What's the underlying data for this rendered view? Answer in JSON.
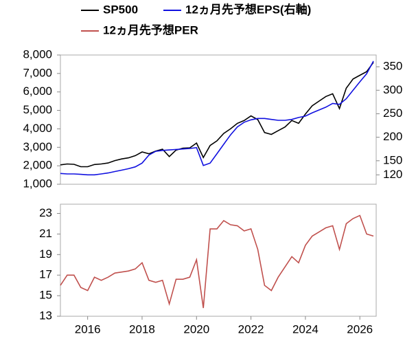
{
  "chart_data": [
    {
      "type": "line",
      "x": [
        2015,
        2015.25,
        2015.5,
        2015.75,
        2016,
        2016.25,
        2016.5,
        2016.75,
        2017,
        2017.25,
        2017.5,
        2017.75,
        2018,
        2018.25,
        2018.5,
        2018.75,
        2019,
        2019.25,
        2019.5,
        2019.75,
        2020,
        2020.25,
        2020.5,
        2020.75,
        2021,
        2021.25,
        2021.5,
        2021.75,
        2022,
        2022.25,
        2022.5,
        2022.75,
        2023,
        2023.25,
        2023.5,
        2023.75,
        2024,
        2024.25,
        2024.5,
        2024.75,
        2025,
        2025.25,
        2025.5,
        2025.75,
        2026,
        2026.25,
        2026.5
      ],
      "series": [
        {
          "name": "SP500",
          "color": "#000000",
          "values": [
            2050,
            2100,
            2080,
            1950,
            1950,
            2070,
            2100,
            2150,
            2280,
            2370,
            2430,
            2550,
            2750,
            2650,
            2800,
            2900,
            2500,
            2850,
            2950,
            2970,
            3230,
            2450,
            3100,
            3350,
            3750,
            4000,
            4300,
            4450,
            4700,
            4500,
            3800,
            3700,
            3900,
            4100,
            4450,
            4300,
            4800,
            5250,
            5500,
            5750,
            5900,
            5100,
            6200,
            6700,
            6900,
            7100,
            7600
          ]
        },
        {
          "name": "12ヵ月先予想EPS(右軸)",
          "color": "#1010e0",
          "axis": "y2",
          "values": [
            123,
            122,
            122,
            121,
            120,
            120,
            122,
            124,
            127,
            130,
            133,
            137,
            145,
            162,
            170,
            172,
            173,
            174,
            175,
            176,
            178,
            140,
            145,
            165,
            185,
            205,
            222,
            232,
            237,
            240,
            240,
            238,
            236,
            236,
            238,
            242,
            245,
            252,
            258,
            264,
            272,
            270,
            282,
            300,
            318,
            335,
            362
          ]
        }
      ],
      "xlim": [
        2015,
        2026.6
      ],
      "ylim": [
        1000,
        8000
      ],
      "yticks": [
        {
          "value": 1000,
          "label": "1,000"
        },
        {
          "value": 2000,
          "label": "2,000"
        },
        {
          "value": 3000,
          "label": "3,000"
        },
        {
          "value": 4000,
          "label": "4,000"
        },
        {
          "value": 5000,
          "label": "5,000"
        },
        {
          "value": 6000,
          "label": "6,000"
        },
        {
          "value": 7000,
          "label": "7,000"
        },
        {
          "value": 8000,
          "label": "8,000"
        }
      ],
      "y2lim": [
        100,
        375
      ],
      "y2ticks": [
        120,
        150,
        200,
        250,
        300,
        350
      ],
      "grid": false
    },
    {
      "type": "line",
      "x": [
        2015,
        2015.25,
        2015.5,
        2015.75,
        2016,
        2016.25,
        2016.5,
        2016.75,
        2017,
        2017.25,
        2017.5,
        2017.75,
        2018,
        2018.25,
        2018.5,
        2018.75,
        2019,
        2019.25,
        2019.5,
        2019.75,
        2020,
        2020.25,
        2020.5,
        2020.75,
        2021,
        2021.25,
        2021.5,
        2021.75,
        2022,
        2022.25,
        2022.5,
        2022.75,
        2023,
        2023.25,
        2023.5,
        2023.75,
        2024,
        2024.25,
        2024.5,
        2024.75,
        2025,
        2025.25,
        2025.5,
        2025.75,
        2026,
        2026.25,
        2026.5
      ],
      "series": [
        {
          "name": "12ヵ月先予想PER",
          "color": "#c0504d",
          "values": [
            16,
            17,
            17,
            15.8,
            15.5,
            16.8,
            16.5,
            16.8,
            17.2,
            17.3,
            17.4,
            17.6,
            18.2,
            16.5,
            16.3,
            16.5,
            14.2,
            16.6,
            16.6,
            16.8,
            18.5,
            13.8,
            21.5,
            21.5,
            22.3,
            21.9,
            21.8,
            21.3,
            21.5,
            19.5,
            16,
            15.5,
            16.8,
            17.8,
            18.8,
            18.2,
            19.9,
            20.8,
            21.2,
            21.6,
            21.8,
            19.5,
            22,
            22.5,
            22.8,
            21,
            20.8
          ]
        }
      ],
      "xlim": [
        2015,
        2026.6
      ],
      "xticks": [
        2016,
        2018,
        2020,
        2022,
        2024,
        2026
      ],
      "ylim": [
        13,
        23.9
      ],
      "yticks": [
        13,
        15,
        17,
        19,
        21,
        23
      ],
      "grid": false
    }
  ]
}
